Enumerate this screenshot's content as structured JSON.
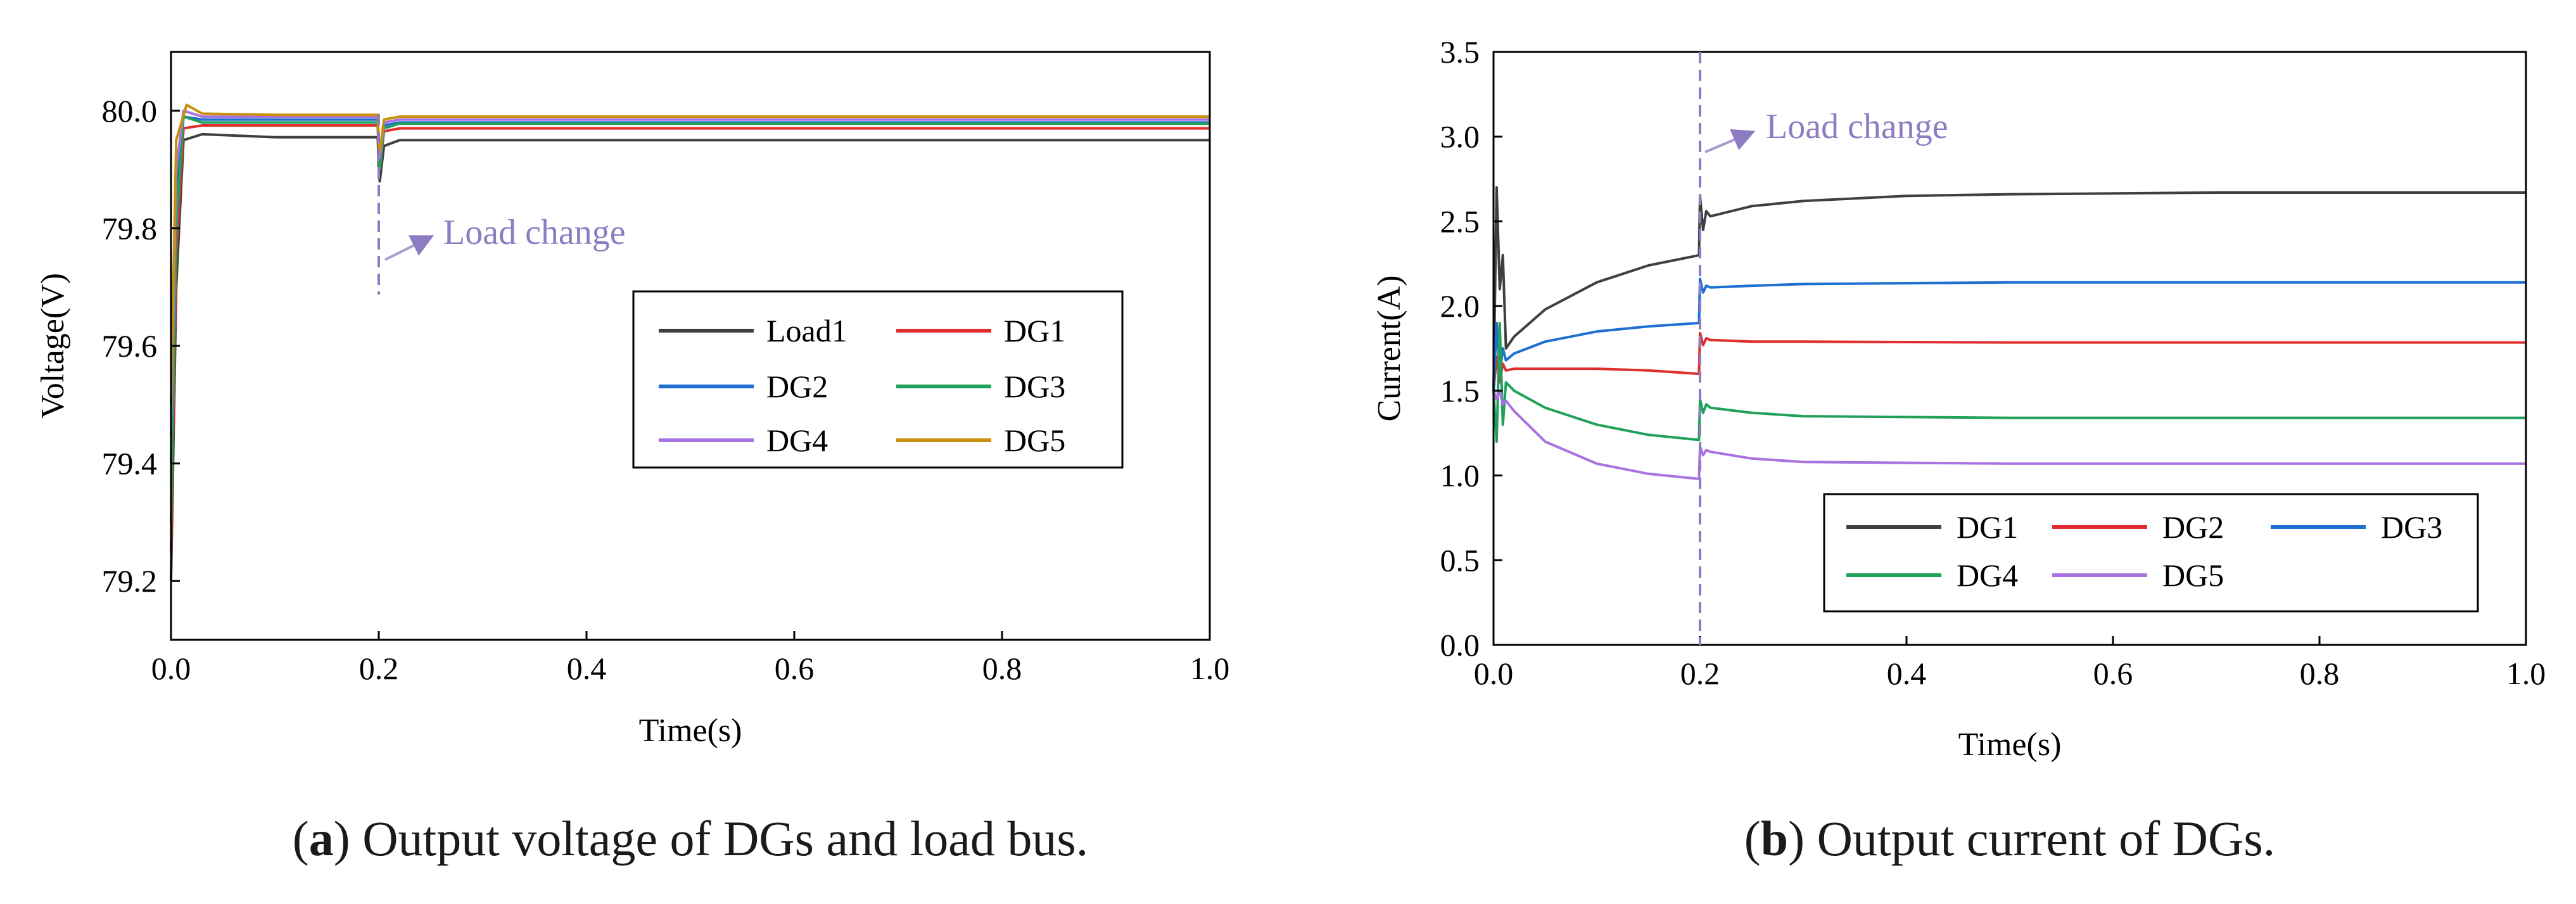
{
  "chart_data": [
    {
      "type": "line",
      "caption_letter": "a",
      "caption_open": "(",
      "caption_close": ")",
      "caption": " Output voltage of DGs and load bus.",
      "xlabel": "Time(s)",
      "ylabel": "Voltage(V)",
      "xlim": [
        0.0,
        1.0
      ],
      "ylim": [
        79.1,
        80.1
      ],
      "xticks": [
        "0.0",
        "0.2",
        "0.4",
        "0.6",
        "0.8",
        "1.0"
      ],
      "yticks": [
        "79.2",
        "79.4",
        "79.6",
        "79.8",
        "80.0"
      ],
      "annotation": {
        "text": "Load change",
        "x": 0.2,
        "color": "#8e7cc3"
      },
      "series": [
        {
          "name": "Load1",
          "color": "#3f3f3f",
          "x": [
            0.0,
            0.005,
            0.012,
            0.03,
            0.1,
            0.199,
            0.2,
            0.201,
            0.205,
            0.22,
            0.4,
            1.0
          ],
          "y": [
            79.2,
            79.7,
            79.95,
            79.96,
            79.955,
            79.955,
            79.9,
            79.88,
            79.94,
            79.95,
            79.95,
            79.95
          ]
        },
        {
          "name": "DG1",
          "color": "#e02d2d",
          "x": [
            0.0,
            0.005,
            0.012,
            0.03,
            0.1,
            0.199,
            0.2,
            0.201,
            0.205,
            0.22,
            0.4,
            1.0
          ],
          "y": [
            79.25,
            79.75,
            79.97,
            79.975,
            79.975,
            79.975,
            79.92,
            79.9,
            79.965,
            79.97,
            79.97,
            79.97
          ]
        },
        {
          "name": "DG2",
          "color": "#1e6fd0",
          "x": [
            0.0,
            0.005,
            0.012,
            0.03,
            0.1,
            0.199,
            0.2,
            0.201,
            0.205,
            0.22,
            0.4,
            1.0
          ],
          "y": [
            79.4,
            79.85,
            79.99,
            79.985,
            79.985,
            79.985,
            79.93,
            79.91,
            79.975,
            79.98,
            79.98,
            79.98
          ]
        },
        {
          "name": "DG3",
          "color": "#21a05a",
          "x": [
            0.0,
            0.005,
            0.012,
            0.03,
            0.1,
            0.199,
            0.2,
            0.201,
            0.205,
            0.22,
            0.4,
            1.0
          ],
          "y": [
            79.3,
            79.8,
            79.99,
            79.98,
            79.98,
            79.98,
            79.93,
            79.9,
            79.97,
            79.978,
            79.978,
            79.978
          ]
        },
        {
          "name": "DG4",
          "color": "#a873e0",
          "x": [
            0.0,
            0.005,
            0.012,
            0.03,
            0.1,
            0.199,
            0.2,
            0.201,
            0.205,
            0.22,
            0.4,
            1.0
          ],
          "y": [
            79.45,
            79.9,
            80.0,
            79.99,
            79.99,
            79.99,
            79.94,
            79.92,
            79.98,
            79.985,
            79.985,
            79.985
          ]
        },
        {
          "name": "DG5",
          "color": "#c8900a",
          "x": [
            0.0,
            0.005,
            0.015,
            0.03,
            0.1,
            0.199,
            0.2,
            0.201,
            0.205,
            0.22,
            0.4,
            1.0
          ],
          "y": [
            79.5,
            79.95,
            80.01,
            79.995,
            79.993,
            79.993,
            79.95,
            79.93,
            79.985,
            79.99,
            79.99,
            79.99
          ]
        }
      ]
    },
    {
      "type": "line",
      "caption_letter": "b",
      "caption_open": "(",
      "caption_close": ")",
      "caption": " Output current of DGs.",
      "xlabel": "Time(s)",
      "ylabel": "Current(A)",
      "xlim": [
        0.0,
        1.0
      ],
      "ylim": [
        0.0,
        3.5
      ],
      "xticks": [
        "0.0",
        "0.2",
        "0.4",
        "0.6",
        "0.8",
        "1.0"
      ],
      "yticks": [
        "0.0",
        "0.5",
        "1.0",
        "1.5",
        "2.0",
        "2.5",
        "3.0",
        "3.5"
      ],
      "annotation": {
        "text": "Load change",
        "x": 0.2,
        "color": "#8e7cc3"
      },
      "series": [
        {
          "name": "DG1",
          "color": "#3f3f3f",
          "x": [
            0.0,
            0.003,
            0.006,
            0.009,
            0.012,
            0.02,
            0.05,
            0.1,
            0.15,
            0.199,
            0.2,
            0.203,
            0.206,
            0.21,
            0.25,
            0.3,
            0.4,
            0.5,
            0.7,
            1.0
          ],
          "y": [
            1.5,
            2.7,
            2.1,
            2.3,
            1.75,
            1.82,
            1.98,
            2.14,
            2.24,
            2.3,
            2.65,
            2.45,
            2.56,
            2.53,
            2.59,
            2.62,
            2.65,
            2.66,
            2.67,
            2.67
          ]
        },
        {
          "name": "DG2",
          "color": "#e02d2d",
          "x": [
            0.0,
            0.003,
            0.006,
            0.009,
            0.012,
            0.02,
            0.05,
            0.1,
            0.15,
            0.199,
            0.2,
            0.203,
            0.206,
            0.21,
            0.25,
            0.3,
            0.5,
            1.0
          ],
          "y": [
            1.5,
            1.7,
            1.55,
            1.66,
            1.62,
            1.63,
            1.63,
            1.63,
            1.62,
            1.6,
            1.84,
            1.77,
            1.81,
            1.8,
            1.79,
            1.79,
            1.785,
            1.785
          ]
        },
        {
          "name": "DG3",
          "color": "#1e6fd0",
          "x": [
            0.0,
            0.003,
            0.006,
            0.009,
            0.012,
            0.02,
            0.05,
            0.1,
            0.15,
            0.199,
            0.2,
            0.203,
            0.206,
            0.21,
            0.25,
            0.3,
            0.5,
            1.0
          ],
          "y": [
            1.5,
            1.9,
            1.6,
            1.75,
            1.68,
            1.72,
            1.79,
            1.85,
            1.88,
            1.9,
            2.16,
            2.08,
            2.12,
            2.11,
            2.12,
            2.13,
            2.14,
            2.14
          ]
        },
        {
          "name": "DG4",
          "color": "#21a05a",
          "x": [
            0.0,
            0.003,
            0.006,
            0.009,
            0.012,
            0.02,
            0.05,
            0.1,
            0.15,
            0.199,
            0.2,
            0.203,
            0.206,
            0.21,
            0.25,
            0.3,
            0.5,
            1.0
          ],
          "y": [
            1.5,
            1.2,
            1.9,
            1.3,
            1.55,
            1.5,
            1.4,
            1.3,
            1.24,
            1.21,
            1.45,
            1.37,
            1.42,
            1.4,
            1.37,
            1.35,
            1.34,
            1.34
          ]
        },
        {
          "name": "DG5",
          "color": "#a873e0",
          "x": [
            0.0,
            0.003,
            0.006,
            0.009,
            0.012,
            0.02,
            0.05,
            0.1,
            0.15,
            0.199,
            0.2,
            0.203,
            0.206,
            0.21,
            0.25,
            0.3,
            0.5,
            1.0
          ],
          "y": [
            1.5,
            1.45,
            1.5,
            1.42,
            1.44,
            1.38,
            1.2,
            1.07,
            1.01,
            0.98,
            1.17,
            1.12,
            1.15,
            1.14,
            1.1,
            1.08,
            1.07,
            1.07
          ]
        }
      ]
    }
  ]
}
